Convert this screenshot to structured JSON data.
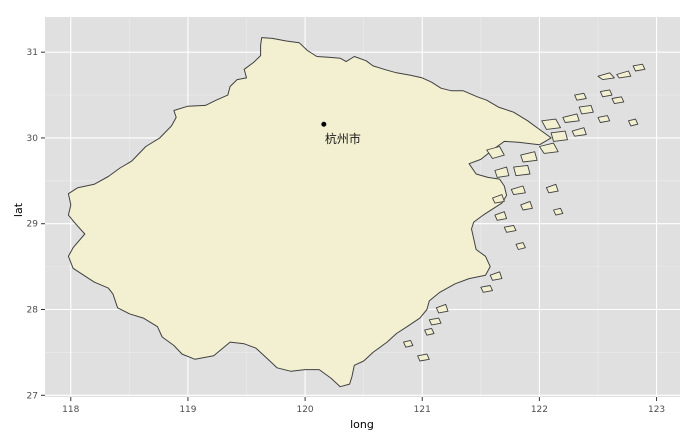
{
  "map": {
    "xlabel": "long",
    "ylabel": "lat",
    "x_ticks": [
      118,
      119,
      120,
      121,
      122,
      123
    ],
    "y_ticks": [
      27,
      28,
      29,
      30,
      31
    ],
    "xlim": [
      117.78,
      123.2
    ],
    "ylim": [
      26.98,
      31.41
    ],
    "colors": {
      "panel": "#e0e0e0",
      "grid_major": "#ffffff",
      "grid_minor": "#ececec",
      "land_fill": "#f2f0d0",
      "land_stroke": "#404040",
      "point": "#000000"
    }
  },
  "places": [
    {
      "name": "杭州市",
      "long": 120.16,
      "lat": 30.16
    }
  ],
  "mainland": [
    [
      119.63,
      31.17
    ],
    [
      119.72,
      31.16
    ],
    [
      119.84,
      31.13
    ],
    [
      119.95,
      31.11
    ],
    [
      120.02,
      31.02
    ],
    [
      120.1,
      30.95
    ],
    [
      120.2,
      30.94
    ],
    [
      120.3,
      30.93
    ],
    [
      120.35,
      30.89
    ],
    [
      120.42,
      30.95
    ],
    [
      120.52,
      30.9
    ],
    [
      120.58,
      30.84
    ],
    [
      120.7,
      30.79
    ],
    [
      120.78,
      30.76
    ],
    [
      120.9,
      30.73
    ],
    [
      121.0,
      30.7
    ],
    [
      121.08,
      30.65
    ],
    [
      121.16,
      30.58
    ],
    [
      121.25,
      30.55
    ],
    [
      121.35,
      30.55
    ],
    [
      121.47,
      30.48
    ],
    [
      121.55,
      30.44
    ],
    [
      121.65,
      30.36
    ],
    [
      121.78,
      30.3
    ],
    [
      121.9,
      30.2
    ],
    [
      122.0,
      30.1
    ],
    [
      122.1,
      30.0
    ],
    [
      122.0,
      29.92
    ],
    [
      121.82,
      29.95
    ],
    [
      121.7,
      29.96
    ],
    [
      121.62,
      29.88
    ],
    [
      121.5,
      29.75
    ],
    [
      121.4,
      29.7
    ],
    [
      121.46,
      29.58
    ],
    [
      121.56,
      29.54
    ],
    [
      121.66,
      29.52
    ],
    [
      121.7,
      29.44
    ],
    [
      121.72,
      29.33
    ],
    [
      121.68,
      29.24
    ],
    [
      121.6,
      29.17
    ],
    [
      121.52,
      29.1
    ],
    [
      121.44,
      29.02
    ],
    [
      121.42,
      28.94
    ],
    [
      121.44,
      28.82
    ],
    [
      121.46,
      28.7
    ],
    [
      121.54,
      28.62
    ],
    [
      121.58,
      28.5
    ],
    [
      121.54,
      28.4
    ],
    [
      121.4,
      28.36
    ],
    [
      121.28,
      28.3
    ],
    [
      121.15,
      28.2
    ],
    [
      121.06,
      28.1
    ],
    [
      121.04,
      28.0
    ],
    [
      120.98,
      27.9
    ],
    [
      120.87,
      27.8
    ],
    [
      120.78,
      27.72
    ],
    [
      120.7,
      27.62
    ],
    [
      120.58,
      27.5
    ],
    [
      120.5,
      27.4
    ],
    [
      120.42,
      27.35
    ],
    [
      120.4,
      27.22
    ],
    [
      120.38,
      27.13
    ],
    [
      120.3,
      27.1
    ],
    [
      120.22,
      27.2
    ],
    [
      120.12,
      27.3
    ],
    [
      120.0,
      27.3
    ],
    [
      119.88,
      27.28
    ],
    [
      119.76,
      27.32
    ],
    [
      119.66,
      27.45
    ],
    [
      119.58,
      27.55
    ],
    [
      119.48,
      27.6
    ],
    [
      119.36,
      27.62
    ],
    [
      119.22,
      27.46
    ],
    [
      119.06,
      27.42
    ],
    [
      118.95,
      27.48
    ],
    [
      118.88,
      27.58
    ],
    [
      118.78,
      27.68
    ],
    [
      118.74,
      27.8
    ],
    [
      118.62,
      27.9
    ],
    [
      118.5,
      27.95
    ],
    [
      118.4,
      28.02
    ],
    [
      118.36,
      28.18
    ],
    [
      118.32,
      28.25
    ],
    [
      118.2,
      28.32
    ],
    [
      118.02,
      28.48
    ],
    [
      117.98,
      28.62
    ],
    [
      118.02,
      28.72
    ],
    [
      118.12,
      28.88
    ],
    [
      118.04,
      29.0
    ],
    [
      117.98,
      29.1
    ],
    [
      118.0,
      29.22
    ],
    [
      117.98,
      29.35
    ],
    [
      118.06,
      29.42
    ],
    [
      118.2,
      29.46
    ],
    [
      118.32,
      29.55
    ],
    [
      118.42,
      29.65
    ],
    [
      118.52,
      29.73
    ],
    [
      118.64,
      29.9
    ],
    [
      118.76,
      30.0
    ],
    [
      118.86,
      30.14
    ],
    [
      118.9,
      30.24
    ],
    [
      118.88,
      30.32
    ],
    [
      119.0,
      30.37
    ],
    [
      119.15,
      30.38
    ],
    [
      119.24,
      30.44
    ],
    [
      119.34,
      30.5
    ],
    [
      119.36,
      30.6
    ],
    [
      119.42,
      30.68
    ],
    [
      119.5,
      30.7
    ],
    [
      119.48,
      30.8
    ],
    [
      119.56,
      30.88
    ],
    [
      119.62,
      30.96
    ],
    [
      119.62,
      31.08
    ]
  ],
  "islands": [
    [
      [
        121.55,
        29.86
      ],
      [
        121.66,
        29.9
      ],
      [
        121.7,
        29.8
      ],
      [
        121.6,
        29.76
      ]
    ],
    [
      [
        121.62,
        29.62
      ],
      [
        121.72,
        29.66
      ],
      [
        121.74,
        29.56
      ],
      [
        121.64,
        29.54
      ]
    ],
    [
      [
        121.78,
        29.66
      ],
      [
        121.9,
        29.68
      ],
      [
        121.92,
        29.58
      ],
      [
        121.8,
        29.56
      ]
    ],
    [
      [
        121.84,
        29.8
      ],
      [
        121.96,
        29.84
      ],
      [
        121.98,
        29.74
      ],
      [
        121.86,
        29.72
      ]
    ],
    [
      [
        122.0,
        29.9
      ],
      [
        122.12,
        29.94
      ],
      [
        122.16,
        29.84
      ],
      [
        122.04,
        29.82
      ]
    ],
    [
      [
        122.02,
        30.2
      ],
      [
        122.14,
        30.22
      ],
      [
        122.18,
        30.12
      ],
      [
        122.06,
        30.1
      ]
    ],
    [
      [
        122.1,
        30.06
      ],
      [
        122.22,
        30.08
      ],
      [
        122.24,
        29.98
      ],
      [
        122.12,
        29.96
      ]
    ],
    [
      [
        122.2,
        30.24
      ],
      [
        122.32,
        30.28
      ],
      [
        122.34,
        30.2
      ],
      [
        122.22,
        30.18
      ]
    ],
    [
      [
        122.28,
        30.08
      ],
      [
        122.38,
        30.12
      ],
      [
        122.4,
        30.04
      ],
      [
        122.3,
        30.02
      ]
    ],
    [
      [
        122.34,
        30.36
      ],
      [
        122.44,
        30.38
      ],
      [
        122.46,
        30.3
      ],
      [
        122.36,
        30.28
      ]
    ],
    [
      [
        122.3,
        30.5
      ],
      [
        122.38,
        30.52
      ],
      [
        122.4,
        30.46
      ],
      [
        122.32,
        30.44
      ]
    ],
    [
      [
        122.5,
        30.72
      ],
      [
        122.6,
        30.76
      ],
      [
        122.64,
        30.7
      ],
      [
        122.54,
        30.68
      ]
    ],
    [
      [
        122.66,
        30.74
      ],
      [
        122.76,
        30.78
      ],
      [
        122.78,
        30.72
      ],
      [
        122.68,
        30.7
      ]
    ],
    [
      [
        122.8,
        30.84
      ],
      [
        122.88,
        30.86
      ],
      [
        122.9,
        30.8
      ],
      [
        122.82,
        30.78
      ]
    ],
    [
      [
        122.52,
        30.54
      ],
      [
        122.6,
        30.56
      ],
      [
        122.62,
        30.5
      ],
      [
        122.54,
        30.48
      ]
    ],
    [
      [
        122.62,
        30.46
      ],
      [
        122.7,
        30.48
      ],
      [
        122.72,
        30.42
      ],
      [
        122.64,
        30.4
      ]
    ],
    [
      [
        122.5,
        30.24
      ],
      [
        122.58,
        30.26
      ],
      [
        122.6,
        30.2
      ],
      [
        122.52,
        30.18
      ]
    ],
    [
      [
        122.76,
        30.2
      ],
      [
        122.82,
        30.22
      ],
      [
        122.84,
        30.16
      ],
      [
        122.78,
        30.14
      ]
    ],
    [
      [
        121.76,
        29.4
      ],
      [
        121.86,
        29.44
      ],
      [
        121.88,
        29.36
      ],
      [
        121.78,
        29.34
      ]
    ],
    [
      [
        121.84,
        29.22
      ],
      [
        121.92,
        29.26
      ],
      [
        121.94,
        29.18
      ],
      [
        121.86,
        29.16
      ]
    ],
    [
      [
        121.6,
        29.3
      ],
      [
        121.68,
        29.34
      ],
      [
        121.7,
        29.26
      ],
      [
        121.62,
        29.24
      ]
    ],
    [
      [
        121.62,
        29.1
      ],
      [
        121.7,
        29.14
      ],
      [
        121.72,
        29.06
      ],
      [
        121.64,
        29.04
      ]
    ],
    [
      [
        121.7,
        28.96
      ],
      [
        121.78,
        28.98
      ],
      [
        121.8,
        28.92
      ],
      [
        121.72,
        28.9
      ]
    ],
    [
      [
        121.8,
        28.76
      ],
      [
        121.86,
        28.78
      ],
      [
        121.88,
        28.72
      ],
      [
        121.82,
        28.7
      ]
    ],
    [
      [
        121.58,
        28.4
      ],
      [
        121.66,
        28.44
      ],
      [
        121.68,
        28.36
      ],
      [
        121.6,
        28.34
      ]
    ],
    [
      [
        121.5,
        28.26
      ],
      [
        121.58,
        28.28
      ],
      [
        121.6,
        28.22
      ],
      [
        121.52,
        28.2
      ]
    ],
    [
      [
        121.12,
        28.02
      ],
      [
        121.2,
        28.06
      ],
      [
        121.22,
        27.98
      ],
      [
        121.14,
        27.96
      ]
    ],
    [
      [
        121.06,
        27.88
      ],
      [
        121.14,
        27.9
      ],
      [
        121.16,
        27.84
      ],
      [
        121.08,
        27.82
      ]
    ],
    [
      [
        121.02,
        27.76
      ],
      [
        121.08,
        27.78
      ],
      [
        121.1,
        27.72
      ],
      [
        121.04,
        27.7
      ]
    ],
    [
      [
        120.84,
        27.62
      ],
      [
        120.9,
        27.64
      ],
      [
        120.92,
        27.58
      ],
      [
        120.86,
        27.56
      ]
    ],
    [
      [
        120.96,
        27.46
      ],
      [
        121.04,
        27.48
      ],
      [
        121.06,
        27.42
      ],
      [
        120.98,
        27.4
      ]
    ],
    [
      [
        122.06,
        29.42
      ],
      [
        122.14,
        29.46
      ],
      [
        122.16,
        29.38
      ],
      [
        122.08,
        29.36
      ]
    ],
    [
      [
        122.12,
        29.16
      ],
      [
        122.18,
        29.18
      ],
      [
        122.2,
        29.12
      ],
      [
        122.14,
        29.1
      ]
    ]
  ]
}
